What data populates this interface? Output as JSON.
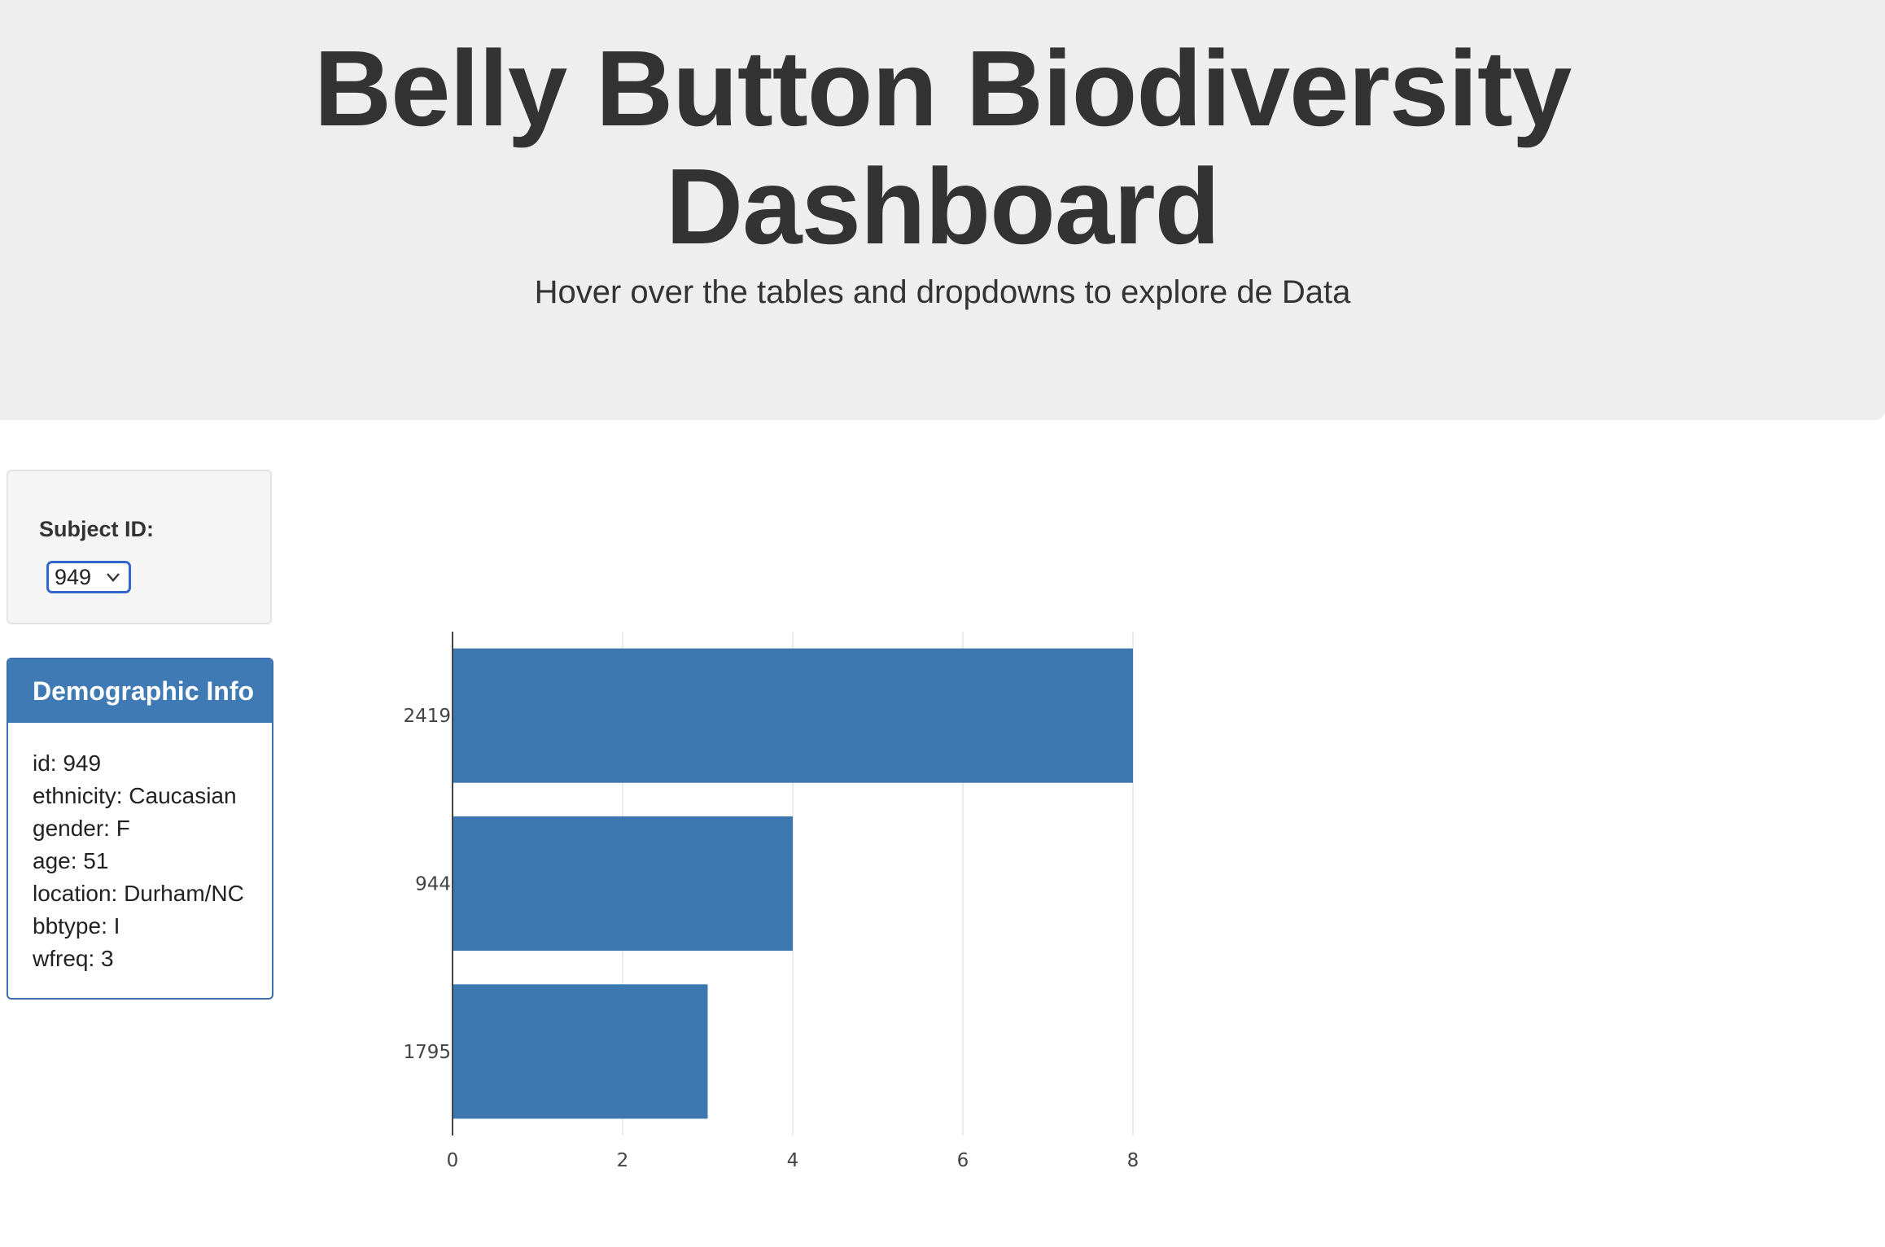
{
  "header": {
    "title_line1": "Belly Button Biodiversity",
    "title_line2": "Dashboard",
    "subtitle": "Hover over the tables and dropdowns to explore de Data"
  },
  "selector": {
    "label": "Subject ID:",
    "selected": "949",
    "icon": "chevron-down-icon"
  },
  "demographics": {
    "heading": "Demographic Info",
    "rows": [
      "id: 949",
      "ethnicity: Caucasian",
      "gender: F",
      "age: 51",
      "location: Durham/NC",
      "bbtype: I",
      "wfreq: 3"
    ]
  },
  "colors": {
    "bar": "#3d77b0",
    "panel_heading": "#3f7ab5"
  },
  "chart_data": {
    "type": "bar",
    "orientation": "horizontal",
    "categories": [
      "2419",
      "944",
      "1795"
    ],
    "values": [
      8,
      4,
      3
    ],
    "xticks": [
      "0",
      "2",
      "4",
      "6",
      "8"
    ],
    "xlim": [
      0,
      8
    ],
    "grid": "vertical",
    "title": "",
    "xlabel": "",
    "ylabel": ""
  }
}
